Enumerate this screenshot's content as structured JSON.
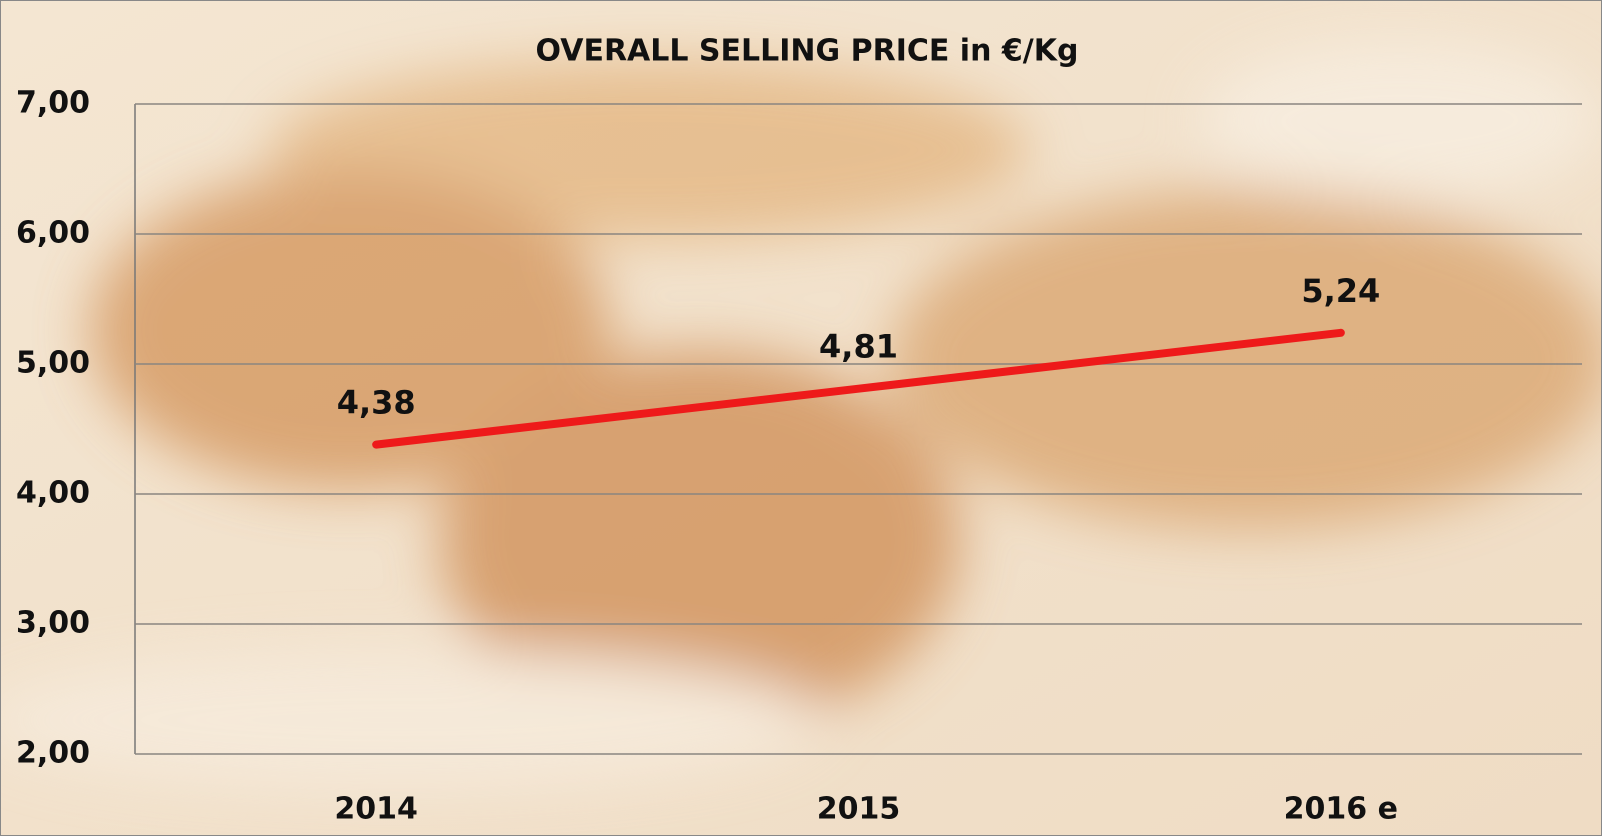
{
  "chart_data": {
    "type": "line",
    "title": "OVERALL SELLING PRICE in €/Kg",
    "categories": [
      "2014",
      "2015",
      "2016 e"
    ],
    "values": [
      4.38,
      4.81,
      5.24
    ],
    "value_labels": [
      "4,38",
      "4,81",
      "5,24"
    ],
    "color": "#ee1a1a",
    "ylim": [
      2,
      7
    ],
    "yticks": [
      {
        "value": 2,
        "label": "2,00"
      },
      {
        "value": 3,
        "label": "3,00"
      },
      {
        "value": 4,
        "label": "4,00"
      },
      {
        "value": 5,
        "label": "5,00"
      },
      {
        "value": 6,
        "label": "6,00"
      },
      {
        "value": 7,
        "label": "7,00"
      }
    ],
    "grid": true
  }
}
